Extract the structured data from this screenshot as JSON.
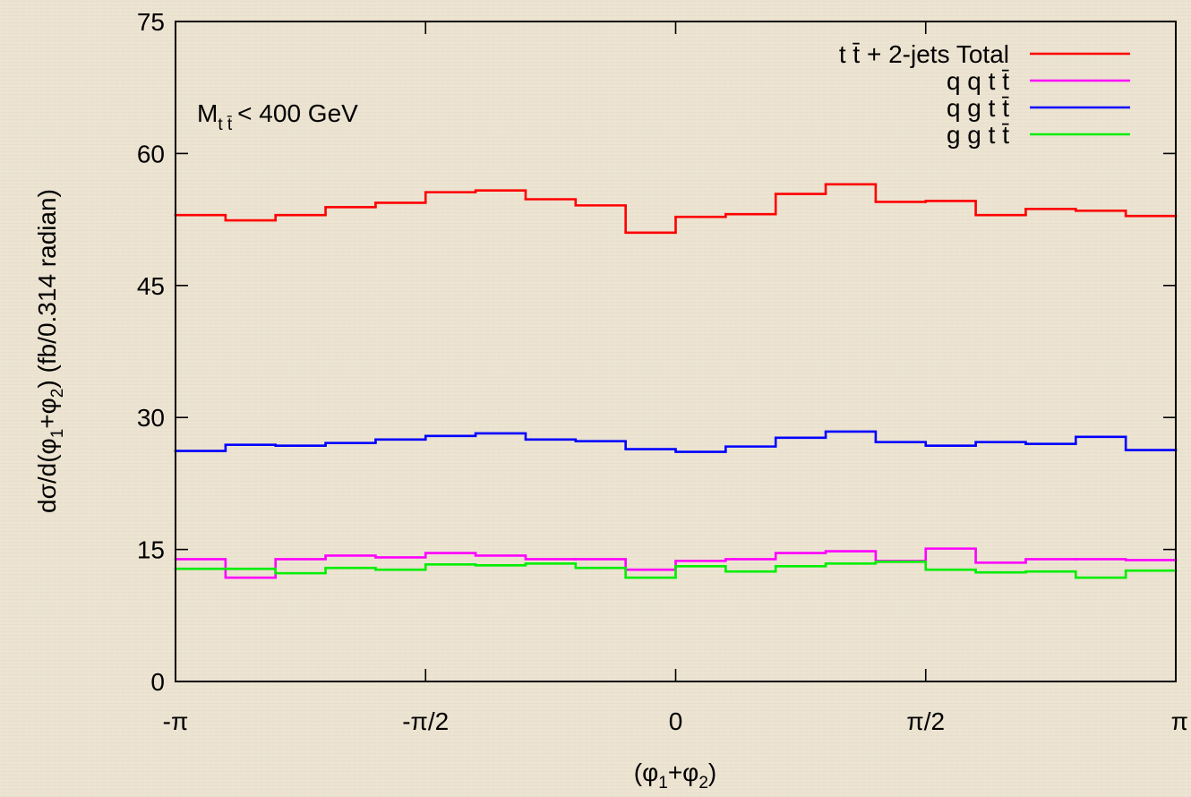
{
  "chart_data": {
    "type": "line",
    "subtype": "step-histogram",
    "title": "",
    "xlabel": "(φ1+φ2)",
    "ylabel": "dσ/d(φ1+φ2) (fb/0.314 radian)",
    "xlim": [
      -3.14159,
      3.14159
    ],
    "ylim": [
      0,
      75
    ],
    "yticks": [
      0,
      15,
      30,
      45,
      60,
      75
    ],
    "xticks": [
      {
        "value": -3.14159,
        "label": "-π"
      },
      {
        "value": -1.5708,
        "label": "-π/2"
      },
      {
        "value": 0,
        "label": "0"
      },
      {
        "value": 1.5708,
        "label": "π/2"
      },
      {
        "value": 3.14159,
        "label": "π"
      }
    ],
    "bin_edges": [
      -3.14159,
      -2.82743,
      -2.51327,
      -2.19911,
      -1.88496,
      -1.5708,
      -1.25664,
      -0.94248,
      -0.62832,
      -0.31416,
      0,
      0.31416,
      0.62832,
      0.94248,
      1.25664,
      1.5708,
      1.88496,
      2.19911,
      2.51327,
      2.82743,
      3.14159
    ],
    "series": [
      {
        "name": "t t̄ + 2-jets Total",
        "color": "#ff0000",
        "values": [
          53.0,
          52.4,
          53.0,
          53.9,
          54.4,
          55.6,
          55.8,
          54.8,
          54.1,
          51.0,
          52.8,
          53.1,
          55.4,
          56.5,
          54.5,
          54.6,
          53.0,
          53.7,
          53.5,
          52.9
        ]
      },
      {
        "name": "q q t t̄",
        "color": "#ff00ff",
        "values": [
          13.9,
          11.8,
          13.9,
          14.3,
          14.1,
          14.6,
          14.3,
          13.9,
          13.9,
          12.7,
          13.7,
          13.9,
          14.6,
          14.8,
          13.7,
          15.1,
          13.5,
          13.9,
          13.9,
          13.8
        ]
      },
      {
        "name": "q g t t̄",
        "color": "#0000ff",
        "values": [
          26.2,
          26.9,
          26.8,
          27.1,
          27.5,
          27.9,
          28.2,
          27.5,
          27.3,
          26.4,
          26.1,
          26.7,
          27.7,
          28.4,
          27.2,
          26.8,
          27.2,
          27.0,
          27.8,
          26.3
        ]
      },
      {
        "name": "g g t t̄",
        "color": "#00ee00",
        "values": [
          12.8,
          12.8,
          12.3,
          12.9,
          12.7,
          13.3,
          13.2,
          13.4,
          12.9,
          11.8,
          13.1,
          12.5,
          13.1,
          13.4,
          13.6,
          12.7,
          12.4,
          12.5,
          11.8,
          12.6
        ]
      }
    ],
    "legend_position": "top-right",
    "grid": false
  },
  "annotation": {
    "text": "M",
    "sub": "t t̄",
    "rest": "< 400 GeV"
  },
  "labels": {
    "ylabel_prefix": "dσ/d(φ",
    "ylabel_sub1": "1",
    "ylabel_mid": "+φ",
    "ylabel_sub2": "2",
    "ylabel_suffix": ") (fb/0.314 radian)",
    "xlabel_prefix": "(φ",
    "xlabel_sub1": "1",
    "xlabel_mid": "+φ",
    "xlabel_sub2": "2",
    "xlabel_suffix": ")"
  }
}
